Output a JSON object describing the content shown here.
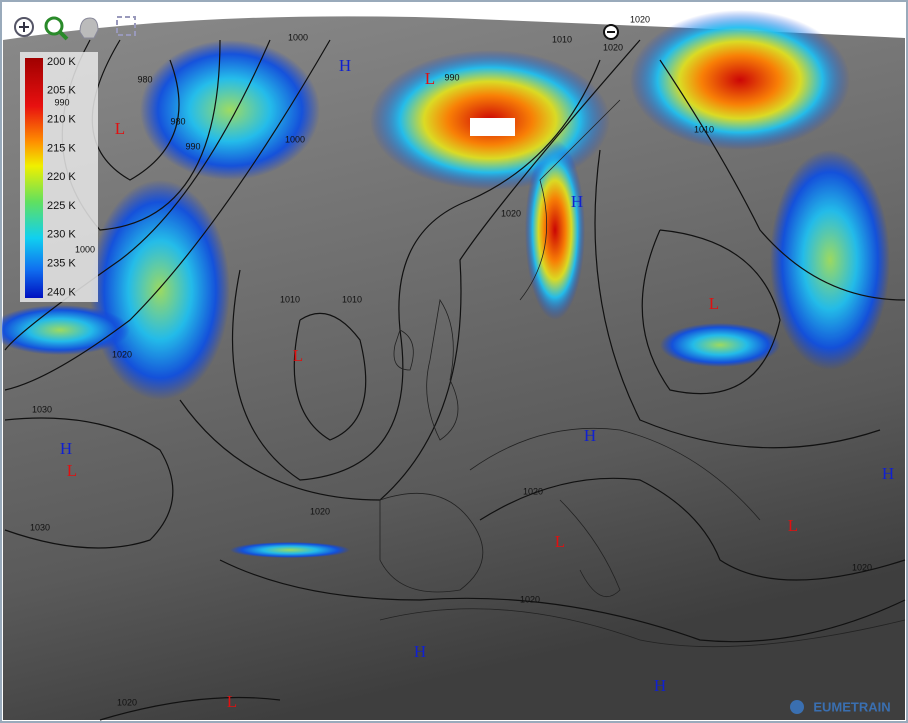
{
  "legend": {
    "labels": [
      "200 K",
      "205 K",
      "210 K",
      "215 K",
      "220 K",
      "225 K",
      "230 K",
      "235 K",
      "240 K"
    ]
  },
  "isobar_labels": [
    "1000",
    "980",
    "990",
    "980",
    "990",
    "1000",
    "990",
    "1010",
    "1020",
    "1010",
    "1020",
    "1000",
    "1010",
    "1010",
    "1020",
    "1030",
    "1030",
    "1020",
    "1020",
    "1020",
    "1020",
    "1020",
    "1020"
  ],
  "pressure_systems": [
    "L",
    "L",
    "H",
    "L",
    "H",
    "L",
    "H",
    "L",
    "H",
    "L",
    "L",
    "H",
    "H",
    "H",
    "L"
  ],
  "logo": "EUMETRAIN"
}
